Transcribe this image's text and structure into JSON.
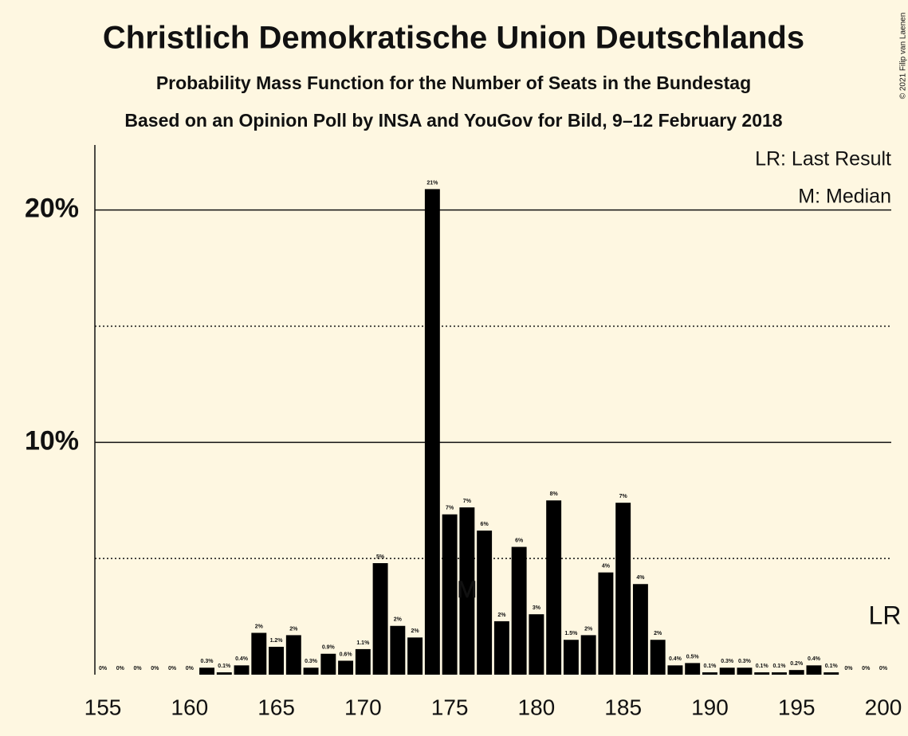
{
  "chart_data": {
    "type": "bar",
    "title": "Christlich Demokratische Union Deutschlands",
    "subtitle": "Probability Mass Function for the Number of Seats in the Bundestag",
    "source": "Based on an Opinion Poll by INSA and YouGov for Bild, 9–12 February 2018",
    "legend": [
      "LR: Last Result",
      "M: Median"
    ],
    "copyright": "© 2021 Filip van Laenen",
    "x": [
      155,
      156,
      157,
      158,
      159,
      160,
      161,
      162,
      163,
      164,
      165,
      166,
      167,
      168,
      169,
      170,
      171,
      172,
      173,
      174,
      175,
      176,
      177,
      178,
      179,
      180,
      181,
      182,
      183,
      184,
      185,
      186,
      187,
      188,
      189,
      190,
      191,
      192,
      193,
      194,
      195,
      196,
      197,
      198,
      199,
      200
    ],
    "values": [
      0,
      0,
      0,
      0,
      0,
      0,
      0.3,
      0.1,
      0.4,
      1.8,
      1.2,
      1.7,
      0.3,
      0.9,
      0.6,
      1.1,
      4.8,
      2.1,
      1.6,
      20.9,
      6.9,
      7.2,
      6.2,
      2.3,
      5.5,
      2.6,
      7.5,
      1.5,
      1.7,
      4.4,
      7.4,
      3.9,
      1.5,
      0.4,
      0.5,
      0.1,
      0.3,
      0.3,
      0.1,
      0.1,
      0.2,
      0.4,
      0.1,
      0,
      0,
      0
    ],
    "value_labels": [
      "0%",
      "0%",
      "0%",
      "0%",
      "0%",
      "0%",
      "0.3%",
      "0.1%",
      "0.4%",
      "2%",
      "1.2%",
      "2%",
      "0.3%",
      "0.9%",
      "0.6%",
      "1.1%",
      "5%",
      "2%",
      "2%",
      "21%",
      "7%",
      "7%",
      "6%",
      "2%",
      "6%",
      "3%",
      "8%",
      "1.5%",
      "2%",
      "4%",
      "7%",
      "4%",
      "2%",
      "0.4%",
      "0.5%",
      "0.1%",
      "0.3%",
      "0.3%",
      "0.1%",
      "0.1%",
      "0.2%",
      "0.4%",
      "0.1%",
      "0%",
      "0%",
      "0%"
    ],
    "color": "#000000",
    "xlim": [
      154.54,
      200.46
    ],
    "xticks": [
      155,
      160,
      165,
      170,
      175,
      180,
      185,
      190,
      195,
      200
    ],
    "ylim": [
      0,
      22.8
    ],
    "yticks": [
      {
        "value": 10,
        "label": "10%"
      },
      {
        "value": 20,
        "label": "20%"
      }
    ],
    "yticks_minor": [
      5,
      15
    ],
    "grid": true,
    "median": 176,
    "median_label": "M",
    "last_result": 200,
    "last_result_label": "LR"
  }
}
